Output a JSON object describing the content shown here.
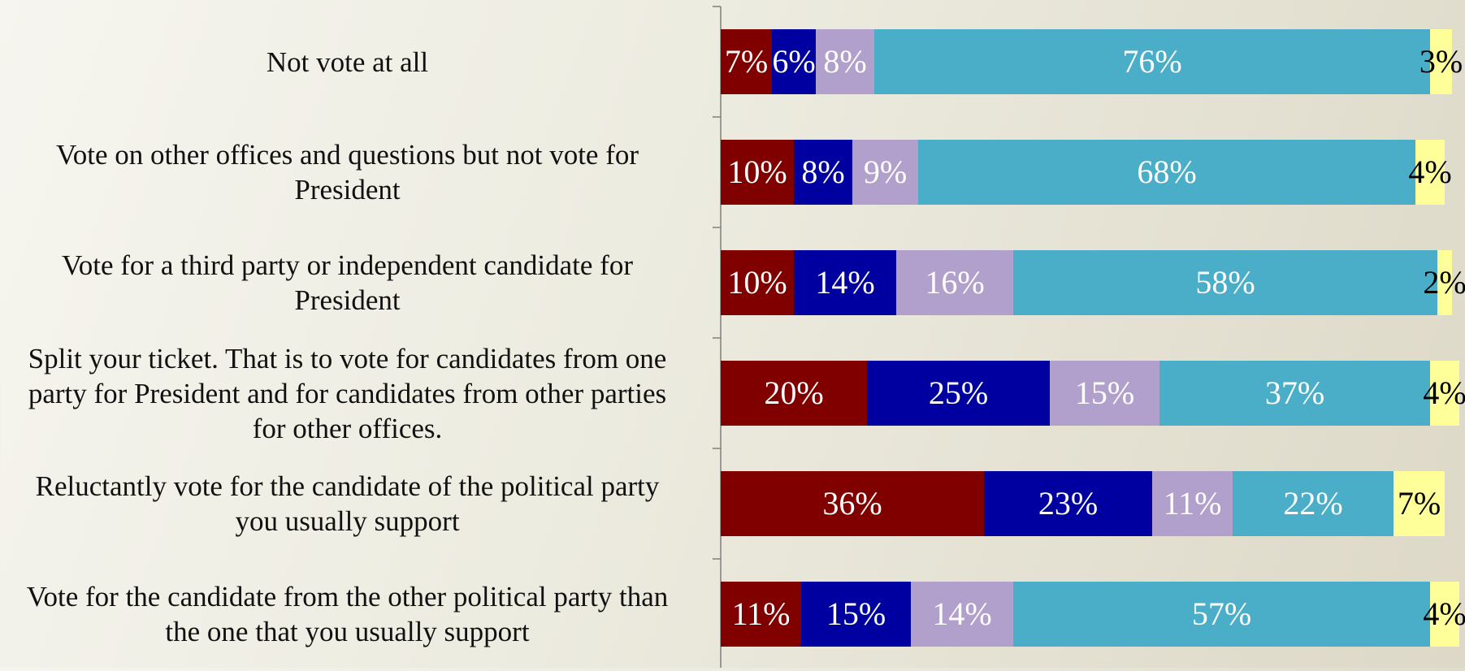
{
  "chart_data": {
    "type": "bar",
    "orientation": "horizontal",
    "stacked": true,
    "normalized": true,
    "categories": [
      "Not vote at all",
      "Vote on other offices and questions but not vote for President",
      "Vote for a third party or independent candidate for President",
      "Split your ticket. That is to vote for candidates from one party for President and for candidates from other parties for other offices.",
      "Reluctantly vote for the candidate of the political party you usually support",
      "Vote for the candidate from the other political party than the one that you usually support"
    ],
    "series": [
      {
        "color": "#800000",
        "label_color": "#ffffff",
        "values": [
          7,
          10,
          10,
          20,
          36,
          11
        ]
      },
      {
        "color": "#0000a0",
        "label_color": "#ffffff",
        "values": [
          6,
          8,
          14,
          25,
          23,
          15
        ]
      },
      {
        "color": "#b1a0cc",
        "label_color": "#ffffff",
        "values": [
          8,
          9,
          16,
          15,
          11,
          14
        ]
      },
      {
        "color": "#4aaec9",
        "label_color": "#ffffff",
        "values": [
          76,
          68,
          58,
          37,
          22,
          57
        ]
      },
      {
        "color": "#ffff99",
        "label_color": "#000000",
        "values": [
          3,
          4,
          2,
          4,
          7,
          4
        ]
      }
    ],
    "data_labels": [
      [
        "7%",
        "6%",
        "8%",
        "76%",
        "3%"
      ],
      [
        "10%",
        "8%",
        "9%",
        "68%",
        "4%"
      ],
      [
        "10%",
        "14%",
        "16%",
        "58%",
        "2%"
      ],
      [
        "20%",
        "25%",
        "15%",
        "37%",
        "4%"
      ],
      [
        "36%",
        "23%",
        "11%",
        "22%",
        "7%"
      ],
      [
        "11%",
        "15%",
        "14%",
        "57%",
        "4%"
      ]
    ],
    "title": "",
    "xlabel": "",
    "ylabel": "",
    "legend": "none",
    "grid": false
  }
}
